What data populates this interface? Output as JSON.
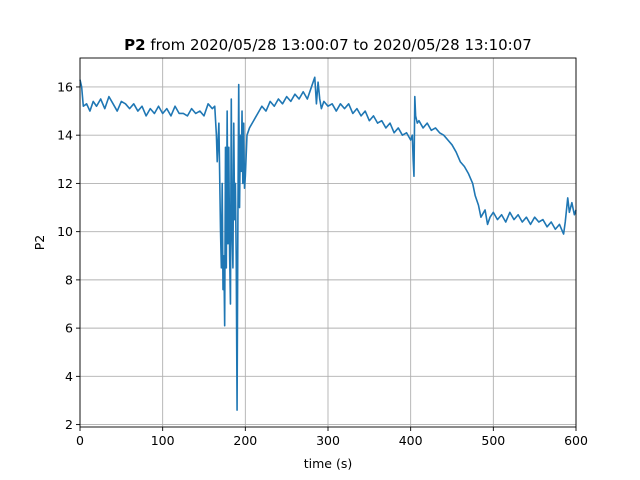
{
  "chart_data": {
    "type": "line",
    "title": {
      "bold": "P2",
      "rest": " from 2020/05/28 13:00:07 to 2020/05/28 13:10:07"
    },
    "xlabel": "time (s)",
    "ylabel": "P2",
    "xlim": [
      0,
      600
    ],
    "ylim": [
      1.9,
      17.2
    ],
    "xticks": [
      0,
      100,
      200,
      300,
      400,
      500,
      600
    ],
    "yticks": [
      2,
      4,
      6,
      8,
      10,
      12,
      14,
      16
    ],
    "grid": true,
    "legend": "none",
    "series": [
      {
        "color": "#1f77b4",
        "points": [
          [
            0,
            16.3
          ],
          [
            2,
            16.0
          ],
          [
            4,
            15.2
          ],
          [
            8,
            15.3
          ],
          [
            12,
            15.0
          ],
          [
            16,
            15.4
          ],
          [
            20,
            15.2
          ],
          [
            25,
            15.5
          ],
          [
            30,
            15.1
          ],
          [
            35,
            15.6
          ],
          [
            40,
            15.3
          ],
          [
            45,
            15.0
          ],
          [
            50,
            15.4
          ],
          [
            55,
            15.3
          ],
          [
            60,
            15.1
          ],
          [
            65,
            15.3
          ],
          [
            70,
            15.0
          ],
          [
            75,
            15.2
          ],
          [
            80,
            14.8
          ],
          [
            85,
            15.1
          ],
          [
            90,
            14.9
          ],
          [
            95,
            15.2
          ],
          [
            100,
            14.9
          ],
          [
            105,
            15.1
          ],
          [
            110,
            14.8
          ],
          [
            115,
            15.2
          ],
          [
            120,
            14.9
          ],
          [
            125,
            14.9
          ],
          [
            130,
            14.8
          ],
          [
            135,
            15.1
          ],
          [
            140,
            14.9
          ],
          [
            145,
            15.0
          ],
          [
            150,
            14.8
          ],
          [
            155,
            15.3
          ],
          [
            160,
            15.1
          ],
          [
            163,
            15.2
          ],
          [
            165,
            14.0
          ],
          [
            166,
            12.9
          ],
          [
            168,
            14.5
          ],
          [
            170,
            10.0
          ],
          [
            171,
            8.5
          ],
          [
            172,
            12.0
          ],
          [
            173,
            7.6
          ],
          [
            174,
            9.0
          ],
          [
            175,
            6.1
          ],
          [
            176,
            13.5
          ],
          [
            177,
            8.5
          ],
          [
            178,
            15.0
          ],
          [
            179,
            9.5
          ],
          [
            180,
            13.5
          ],
          [
            181,
            9.0
          ],
          [
            182,
            7.0
          ],
          [
            183,
            15.5
          ],
          [
            184,
            10.0
          ],
          [
            185,
            8.5
          ],
          [
            186,
            14.5
          ],
          [
            187,
            10.5
          ],
          [
            188,
            12.0
          ],
          [
            189,
            8.8
          ],
          [
            190,
            2.6
          ],
          [
            191,
            10.5
          ],
          [
            192,
            16.1
          ],
          [
            193,
            11.0
          ],
          [
            194,
            14.0
          ],
          [
            195,
            12.5
          ],
          [
            196,
            15.0
          ],
          [
            197,
            12.0
          ],
          [
            198,
            14.5
          ],
          [
            199,
            11.8
          ],
          [
            200,
            12.3
          ],
          [
            202,
            14.0
          ],
          [
            205,
            14.3
          ],
          [
            210,
            14.6
          ],
          [
            215,
            14.9
          ],
          [
            220,
            15.2
          ],
          [
            225,
            15.0
          ],
          [
            230,
            15.4
          ],
          [
            235,
            15.2
          ],
          [
            240,
            15.5
          ],
          [
            245,
            15.3
          ],
          [
            250,
            15.6
          ],
          [
            255,
            15.4
          ],
          [
            260,
            15.7
          ],
          [
            265,
            15.5
          ],
          [
            270,
            15.8
          ],
          [
            275,
            15.5
          ],
          [
            280,
            16.0
          ],
          [
            284,
            16.4
          ],
          [
            286,
            15.3
          ],
          [
            288,
            16.2
          ],
          [
            290,
            15.5
          ],
          [
            292,
            15.1
          ],
          [
            295,
            15.4
          ],
          [
            300,
            15.2
          ],
          [
            305,
            15.3
          ],
          [
            310,
            15.0
          ],
          [
            315,
            15.3
          ],
          [
            320,
            15.1
          ],
          [
            325,
            15.3
          ],
          [
            330,
            14.9
          ],
          [
            335,
            15.1
          ],
          [
            340,
            14.8
          ],
          [
            345,
            15.0
          ],
          [
            350,
            14.6
          ],
          [
            355,
            14.8
          ],
          [
            360,
            14.5
          ],
          [
            365,
            14.6
          ],
          [
            370,
            14.3
          ],
          [
            375,
            14.5
          ],
          [
            380,
            14.1
          ],
          [
            385,
            14.3
          ],
          [
            390,
            14.0
          ],
          [
            395,
            14.1
          ],
          [
            400,
            13.8
          ],
          [
            402,
            14.0
          ],
          [
            403,
            13.0
          ],
          [
            404,
            12.3
          ],
          [
            405,
            15.6
          ],
          [
            406,
            14.8
          ],
          [
            408,
            14.5
          ],
          [
            410,
            14.6
          ],
          [
            415,
            14.3
          ],
          [
            420,
            14.5
          ],
          [
            425,
            14.2
          ],
          [
            430,
            14.3
          ],
          [
            435,
            14.1
          ],
          [
            440,
            14.0
          ],
          [
            445,
            13.8
          ],
          [
            450,
            13.6
          ],
          [
            455,
            13.3
          ],
          [
            460,
            12.9
          ],
          [
            465,
            12.7
          ],
          [
            470,
            12.4
          ],
          [
            475,
            12.0
          ],
          [
            478,
            11.5
          ],
          [
            482,
            11.1
          ],
          [
            485,
            10.6
          ],
          [
            490,
            10.9
          ],
          [
            493,
            10.3
          ],
          [
            496,
            10.6
          ],
          [
            500,
            10.8
          ],
          [
            505,
            10.5
          ],
          [
            510,
            10.7
          ],
          [
            515,
            10.4
          ],
          [
            520,
            10.8
          ],
          [
            525,
            10.5
          ],
          [
            530,
            10.7
          ],
          [
            535,
            10.4
          ],
          [
            540,
            10.6
          ],
          [
            545,
            10.3
          ],
          [
            550,
            10.6
          ],
          [
            555,
            10.4
          ],
          [
            560,
            10.5
          ],
          [
            565,
            10.2
          ],
          [
            570,
            10.4
          ],
          [
            575,
            10.1
          ],
          [
            580,
            10.3
          ],
          [
            585,
            9.9
          ],
          [
            587,
            10.4
          ],
          [
            590,
            11.4
          ],
          [
            592,
            10.8
          ],
          [
            595,
            11.2
          ],
          [
            598,
            10.7
          ],
          [
            600,
            10.9
          ]
        ]
      }
    ]
  }
}
